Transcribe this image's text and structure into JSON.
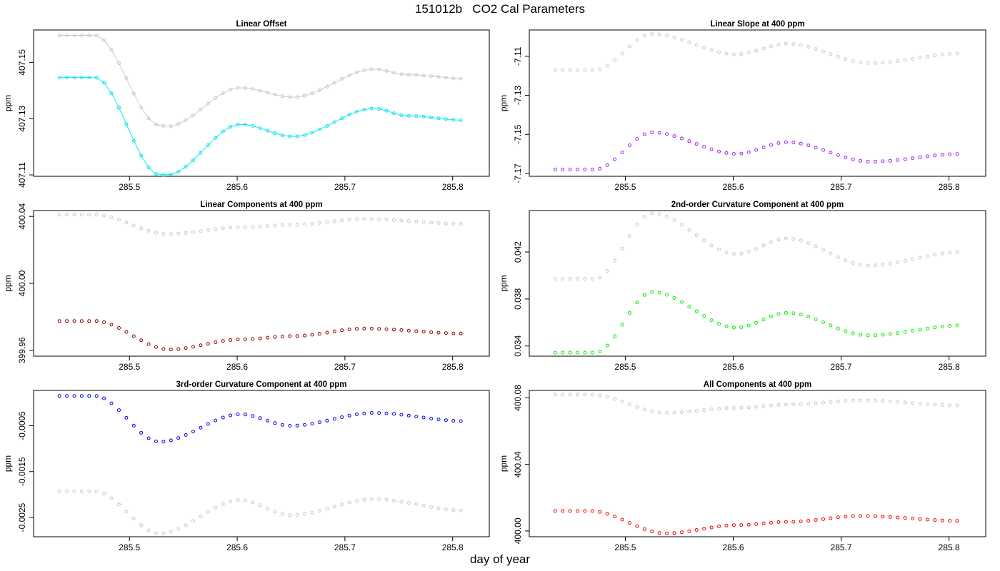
{
  "figure": {
    "title": "151012b   CO2 Cal Parameters",
    "xlabel": "day of year"
  },
  "chart_data": [
    {
      "type": "scatter",
      "title": "Linear Offset",
      "ylabel": "ppm",
      "xlim": [
        285.411,
        285.834
      ],
      "ylim": [
        407.1095,
        407.1615
      ],
      "x_ticks": [
        "285.5",
        "285.6",
        "285.7",
        "285.8"
      ],
      "y_ticks": [
        "407.11",
        "407.13",
        "407.15"
      ],
      "series": [
        {
          "color": "#c8c8c8",
          "connected": true,
          "keypoints": [
            [
              285.435,
              407.1596
            ],
            [
              285.468,
              407.1596
            ],
            [
              285.528,
              407.1276
            ],
            [
              285.535,
              407.1272
            ],
            [
              285.603,
              407.141
            ],
            [
              285.652,
              407.1376
            ],
            [
              285.727,
              407.1476
            ],
            [
              285.758,
              407.1456
            ],
            [
              285.812,
              407.1442
            ]
          ]
        },
        {
          "color": "#00e5ee",
          "connected": true,
          "keypoints": [
            [
              285.435,
              407.1446
            ],
            [
              285.468,
              407.1446
            ],
            [
              285.528,
              407.11
            ],
            [
              285.535,
              407.11
            ],
            [
              285.603,
              407.128
            ],
            [
              285.652,
              407.1236
            ],
            [
              285.727,
              407.1336
            ],
            [
              285.758,
              407.131
            ],
            [
              285.812,
              407.1294
            ]
          ]
        }
      ]
    },
    {
      "type": "scatter",
      "title": "Linear Slope at 400 ppm",
      "ylabel": "ppm",
      "xlim": [
        285.411,
        285.834
      ],
      "ylim": [
        -7.1715,
        -7.0965
      ],
      "x_ticks": [
        "285.5",
        "285.6",
        "285.7",
        "285.8"
      ],
      "y_ticks": [
        "-7.11",
        "-7.13",
        "-7.15",
        "-7.17"
      ],
      "series": [
        {
          "color": "#c8c8c8",
          "connected": false,
          "keypoints": [
            [
              285.435,
              -7.117
            ],
            [
              285.472,
              -7.117
            ],
            [
              285.525,
              -7.0985
            ],
            [
              285.603,
              -7.109
            ],
            [
              285.65,
              -7.1035
            ],
            [
              285.727,
              -7.1135
            ],
            [
              285.812,
              -7.1085
            ]
          ]
        },
        {
          "color": "#a020f0",
          "connected": false,
          "keypoints": [
            [
              285.435,
              -7.168
            ],
            [
              285.472,
              -7.168
            ],
            [
              285.525,
              -7.149
            ],
            [
              285.603,
              -7.16
            ],
            [
              285.65,
              -7.154
            ],
            [
              285.727,
              -7.164
            ],
            [
              285.812,
              -7.16
            ]
          ]
        }
      ]
    },
    {
      "type": "scatter",
      "title": "Linear Components at 400 ppm",
      "ylabel": "ppm",
      "xlim": [
        285.411,
        285.834
      ],
      "ylim": [
        399.9565,
        400.0435
      ],
      "x_ticks": [
        "285.5",
        "285.6",
        "285.7",
        "285.8"
      ],
      "y_ticks": [
        "399.96",
        "400.00",
        "400.04"
      ],
      "series": [
        {
          "color": "#c8c8c8",
          "connected": false,
          "keypoints": [
            [
              285.435,
              400.041
            ],
            [
              285.468,
              400.041
            ],
            [
              285.535,
              400.0295
            ],
            [
              285.603,
              400.0335
            ],
            [
              285.652,
              400.035
            ],
            [
              285.718,
              400.0385
            ],
            [
              285.812,
              400.0355
            ]
          ]
        },
        {
          "color": "#8b0000",
          "connected": false,
          "keypoints": [
            [
              285.435,
              399.9775
            ],
            [
              285.468,
              399.9775
            ],
            [
              285.537,
              399.9605
            ],
            [
              285.603,
              399.9665
            ],
            [
              285.652,
              399.9685
            ],
            [
              285.718,
              399.973
            ],
            [
              285.812,
              399.97
            ]
          ]
        }
      ]
    },
    {
      "type": "scatter",
      "title": "2nd-order Curvature Component at 400 ppm",
      "ylabel": "ppm",
      "xlim": [
        285.411,
        285.834
      ],
      "ylim": [
        0.03313,
        0.04553
      ],
      "x_ticks": [
        "285.5",
        "285.6",
        "285.7",
        "285.8"
      ],
      "y_ticks": [
        "0.034",
        "0.038",
        "0.042"
      ],
      "series": [
        {
          "color": "#c8c8c8",
          "connected": false,
          "keypoints": [
            [
              285.435,
              0.03972
            ],
            [
              285.472,
              0.03972
            ],
            [
              285.525,
              0.0453
            ],
            [
              285.603,
              0.04183
            ],
            [
              285.65,
              0.04315
            ],
            [
              285.725,
              0.04085
            ],
            [
              285.812,
              0.042
            ]
          ]
        },
        {
          "color": "#00ee00",
          "connected": false,
          "keypoints": [
            [
              285.435,
              0.03343
            ],
            [
              285.472,
              0.03343
            ],
            [
              285.525,
              0.0386
            ],
            [
              285.603,
              0.03555
            ],
            [
              285.65,
              0.03682
            ],
            [
              285.725,
              0.0349
            ],
            [
              285.812,
              0.03575
            ]
          ]
        }
      ]
    },
    {
      "type": "scatter",
      "title": "3rd-order Curvature Component at 400 ppm",
      "ylabel": "ppm",
      "xlim": [
        285.411,
        285.834
      ],
      "ylim": [
        -0.00292,
        0.00027
      ],
      "x_ticks": [
        "285.5",
        "285.6",
        "285.7",
        "285.8"
      ],
      "y_ticks": [
        "-0.0005",
        "-0.0015",
        "-0.0025"
      ],
      "series": [
        {
          "color": "#0000ee",
          "connected": false,
          "keypoints": [
            [
              285.435,
              0.00015
            ],
            [
              285.468,
              0.00015
            ],
            [
              285.528,
              -0.00085
            ],
            [
              285.603,
              -0.00025
            ],
            [
              285.65,
              -0.0005
            ],
            [
              285.727,
              -0.00022
            ],
            [
              285.812,
              -0.0004
            ]
          ]
        },
        {
          "color": "#c8c8c8",
          "connected": false,
          "keypoints": [
            [
              285.435,
              -0.00193
            ],
            [
              285.468,
              -0.00193
            ],
            [
              285.528,
              -0.00285
            ],
            [
              285.603,
              -0.00212
            ],
            [
              285.65,
              -0.00245
            ],
            [
              285.727,
              -0.0021
            ],
            [
              285.812,
              -0.00235
            ]
          ]
        }
      ]
    },
    {
      "type": "scatter",
      "title": "All Components at 400 ppm",
      "ylabel": "ppm",
      "xlim": [
        285.411,
        285.834
      ],
      "ylim": [
        399.9965,
        400.0845
      ],
      "x_ticks": [
        "285.5",
        "285.6",
        "285.7",
        "285.8"
      ],
      "y_ticks": [
        "400.00",
        "400.04",
        "400.08"
      ],
      "series": [
        {
          "color": "#c8c8c8",
          "connected": false,
          "keypoints": [
            [
              285.435,
              400.082
            ],
            [
              285.468,
              400.082
            ],
            [
              285.537,
              400.071
            ],
            [
              285.603,
              400.074
            ],
            [
              285.652,
              400.076
            ],
            [
              285.718,
              400.0785
            ],
            [
              285.812,
              400.0755
            ]
          ]
        },
        {
          "color": "#ee0000",
          "connected": false,
          "keypoints": [
            [
              285.435,
              400.012
            ],
            [
              285.468,
              400.012
            ],
            [
              285.537,
              399.9985
            ],
            [
              285.603,
              400.0035
            ],
            [
              285.652,
              400.0055
            ],
            [
              285.718,
              400.009
            ],
            [
              285.812,
              400.006
            ]
          ]
        }
      ]
    }
  ]
}
